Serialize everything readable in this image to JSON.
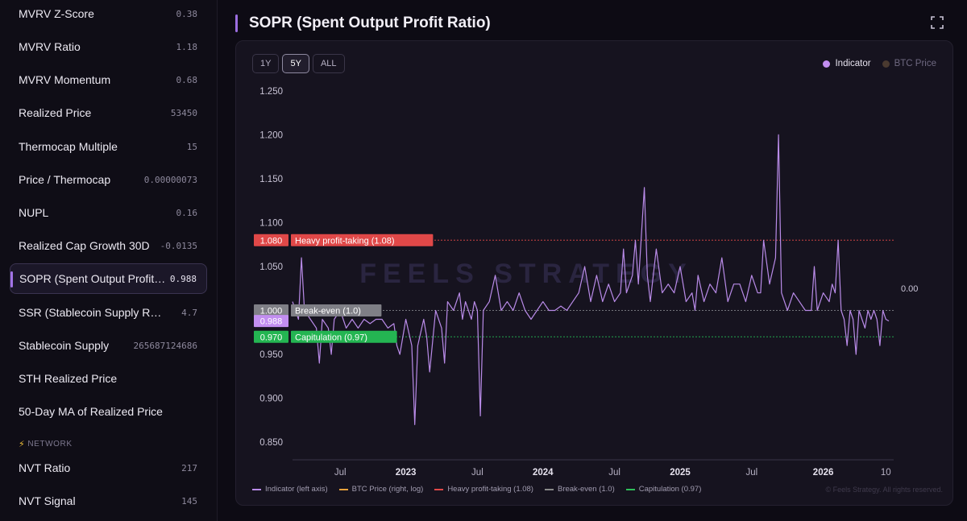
{
  "sidebar": {
    "metrics": [
      {
        "label": "MVRV Z-Score",
        "value": "0.38"
      },
      {
        "label": "MVRV Ratio",
        "value": "1.18"
      },
      {
        "label": "MVRV Momentum",
        "value": "0.68"
      },
      {
        "label": "Realized Price",
        "value": "53450"
      },
      {
        "label": "Thermocap Multiple",
        "value": "15"
      },
      {
        "label": "Price / Thermocap",
        "value": "0.00000073"
      },
      {
        "label": "NUPL",
        "value": "0.16"
      },
      {
        "label": "Realized Cap Growth 30D",
        "value": "-0.0135"
      },
      {
        "label": "SOPR (Spent Output Profit Ratio)",
        "value": "0.988"
      },
      {
        "label": "SSR (Stablecoin Supply Ratio)",
        "value": "4.7"
      },
      {
        "label": "Stablecoin Supply",
        "value": "265687124686"
      },
      {
        "label": "STH Realized Price",
        "value": ""
      },
      {
        "label": "50-Day MA of Realized Price",
        "value": ""
      }
    ],
    "active_index": 8,
    "section_label": "NETWORK",
    "network_metrics": [
      {
        "label": "NVT Ratio",
        "value": "217"
      },
      {
        "label": "NVT Signal",
        "value": "145"
      }
    ]
  },
  "header": {
    "title": "SOPR (Spent Output Profit Ratio)"
  },
  "ranges": [
    "1Y",
    "5Y",
    "ALL"
  ],
  "active_range": "5Y",
  "legend_top": [
    {
      "label": "Indicator",
      "color": "#c28ef0"
    },
    {
      "label": "BTC Price",
      "color": "#4a3a30"
    }
  ],
  "legend_bottom": [
    {
      "label": "Indicator (left axis)",
      "color": "#b98be8"
    },
    {
      "label": "BTC Price (right, log)",
      "color": "#e8a23c"
    },
    {
      "label": "Heavy profit-taking (1.08)",
      "color": "#e04848"
    },
    {
      "label": "Break-even (1.0)",
      "color": "#8a8a8a"
    },
    {
      "label": "Capitulation (0.97)",
      "color": "#2fbf5a"
    }
  ],
  "watermark": "FEELS STRATEGY",
  "copyright": "© Feels Strategy. All rights reserved.",
  "right_axis_value": "0.00",
  "chart_data": {
    "type": "line",
    "series_name": "Indicator",
    "y_ticks": [
      "1.250",
      "1.200",
      "1.150",
      "1.100",
      "1.050",
      "1.000",
      "0.950",
      "0.900",
      "0.850"
    ],
    "ylim": [
      0.83,
      1.27
    ],
    "x_ticks": [
      "Jul",
      "2023",
      "Jul",
      "2024",
      "Jul",
      "2025",
      "Jul",
      "2026",
      "10"
    ],
    "thresholds": [
      {
        "value": 1.08,
        "value_label": "1.080",
        "label": "Heavy profit-taking (1.08)",
        "color": "#e04848"
      },
      {
        "value": 1.0,
        "value_label": "1.000",
        "label": "Break-even (1.0)",
        "color": "#7f7f86"
      },
      {
        "value": 0.97,
        "value_label": "0.970",
        "label": "Capitulation (0.97)",
        "color": "#24b552"
      }
    ],
    "current": {
      "value": 0.988,
      "label": "0.988"
    },
    "points": [
      [
        0.0,
        1.01
      ],
      [
        0.01,
        0.99
      ],
      [
        0.015,
        1.06
      ],
      [
        0.02,
        1.0
      ],
      [
        0.03,
        0.99
      ],
      [
        0.04,
        0.98
      ],
      [
        0.045,
        0.94
      ],
      [
        0.05,
        0.99
      ],
      [
        0.06,
        0.98
      ],
      [
        0.065,
        0.95
      ],
      [
        0.07,
        0.99
      ],
      [
        0.08,
        1.0
      ],
      [
        0.09,
        0.98
      ],
      [
        0.1,
        0.99
      ],
      [
        0.11,
        0.98
      ],
      [
        0.12,
        0.99
      ],
      [
        0.13,
        0.985
      ],
      [
        0.14,
        0.99
      ],
      [
        0.15,
        0.99
      ],
      [
        0.16,
        0.98
      ],
      [
        0.17,
        0.985
      ],
      [
        0.175,
        0.96
      ],
      [
        0.18,
        0.95
      ],
      [
        0.19,
        0.99
      ],
      [
        0.2,
        0.96
      ],
      [
        0.205,
        0.87
      ],
      [
        0.21,
        0.96
      ],
      [
        0.22,
        0.99
      ],
      [
        0.225,
        0.97
      ],
      [
        0.23,
        0.93
      ],
      [
        0.24,
        1.0
      ],
      [
        0.25,
        0.98
      ],
      [
        0.255,
        0.94
      ],
      [
        0.26,
        1.01
      ],
      [
        0.27,
        1.0
      ],
      [
        0.28,
        1.02
      ],
      [
        0.285,
        0.99
      ],
      [
        0.29,
        1.01
      ],
      [
        0.3,
        0.99
      ],
      [
        0.305,
        1.01
      ],
      [
        0.31,
        1.0
      ],
      [
        0.315,
        0.88
      ],
      [
        0.32,
        1.0
      ],
      [
        0.33,
        1.01
      ],
      [
        0.34,
        1.04
      ],
      [
        0.35,
        1.0
      ],
      [
        0.36,
        1.01
      ],
      [
        0.37,
        1.0
      ],
      [
        0.38,
        1.02
      ],
      [
        0.39,
        1.0
      ],
      [
        0.4,
        0.99
      ],
      [
        0.41,
        1.0
      ],
      [
        0.42,
        1.01
      ],
      [
        0.43,
        1.0
      ],
      [
        0.44,
        1.0
      ],
      [
        0.45,
        1.005
      ],
      [
        0.46,
        1.0
      ],
      [
        0.47,
        1.01
      ],
      [
        0.48,
        1.02
      ],
      [
        0.49,
        1.05
      ],
      [
        0.5,
        1.01
      ],
      [
        0.51,
        1.04
      ],
      [
        0.52,
        1.01
      ],
      [
        0.53,
        1.03
      ],
      [
        0.54,
        1.01
      ],
      [
        0.55,
        1.02
      ],
      [
        0.555,
        1.07
      ],
      [
        0.56,
        1.02
      ],
      [
        0.57,
        1.04
      ],
      [
        0.575,
        1.08
      ],
      [
        0.58,
        1.03
      ],
      [
        0.59,
        1.14
      ],
      [
        0.595,
        1.04
      ],
      [
        0.6,
        1.01
      ],
      [
        0.61,
        1.07
      ],
      [
        0.62,
        1.02
      ],
      [
        0.63,
        1.03
      ],
      [
        0.64,
        1.02
      ],
      [
        0.65,
        1.05
      ],
      [
        0.66,
        1.01
      ],
      [
        0.67,
        1.02
      ],
      [
        0.675,
        1.0
      ],
      [
        0.68,
        1.04
      ],
      [
        0.69,
        1.01
      ],
      [
        0.7,
        1.03
      ],
      [
        0.71,
        1.02
      ],
      [
        0.72,
        1.06
      ],
      [
        0.73,
        1.01
      ],
      [
        0.74,
        1.03
      ],
      [
        0.75,
        1.03
      ],
      [
        0.76,
        1.01
      ],
      [
        0.77,
        1.04
      ],
      [
        0.78,
        1.02
      ],
      [
        0.785,
        1.02
      ],
      [
        0.79,
        1.08
      ],
      [
        0.8,
        1.03
      ],
      [
        0.81,
        1.06
      ],
      [
        0.815,
        1.2
      ],
      [
        0.82,
        1.02
      ],
      [
        0.83,
        1.0
      ],
      [
        0.84,
        1.02
      ],
      [
        0.85,
        1.01
      ],
      [
        0.86,
        1.0
      ],
      [
        0.87,
        1.0
      ],
      [
        0.875,
        1.05
      ],
      [
        0.88,
        1.0
      ],
      [
        0.89,
        1.02
      ],
      [
        0.9,
        1.01
      ],
      [
        0.905,
        1.03
      ],
      [
        0.91,
        1.02
      ],
      [
        0.915,
        1.08
      ],
      [
        0.92,
        1.0
      ],
      [
        0.925,
        0.99
      ],
      [
        0.93,
        0.96
      ],
      [
        0.935,
        1.0
      ],
      [
        0.94,
        0.99
      ],
      [
        0.945,
        0.95
      ],
      [
        0.95,
        1.0
      ],
      [
        0.955,
        0.99
      ],
      [
        0.96,
        0.98
      ],
      [
        0.965,
        1.0
      ],
      [
        0.97,
        0.99
      ],
      [
        0.975,
        1.0
      ],
      [
        0.98,
        0.99
      ],
      [
        0.985,
        0.96
      ],
      [
        0.99,
        1.0
      ],
      [
        0.995,
        0.99
      ],
      [
        1.0,
        0.988
      ]
    ]
  }
}
